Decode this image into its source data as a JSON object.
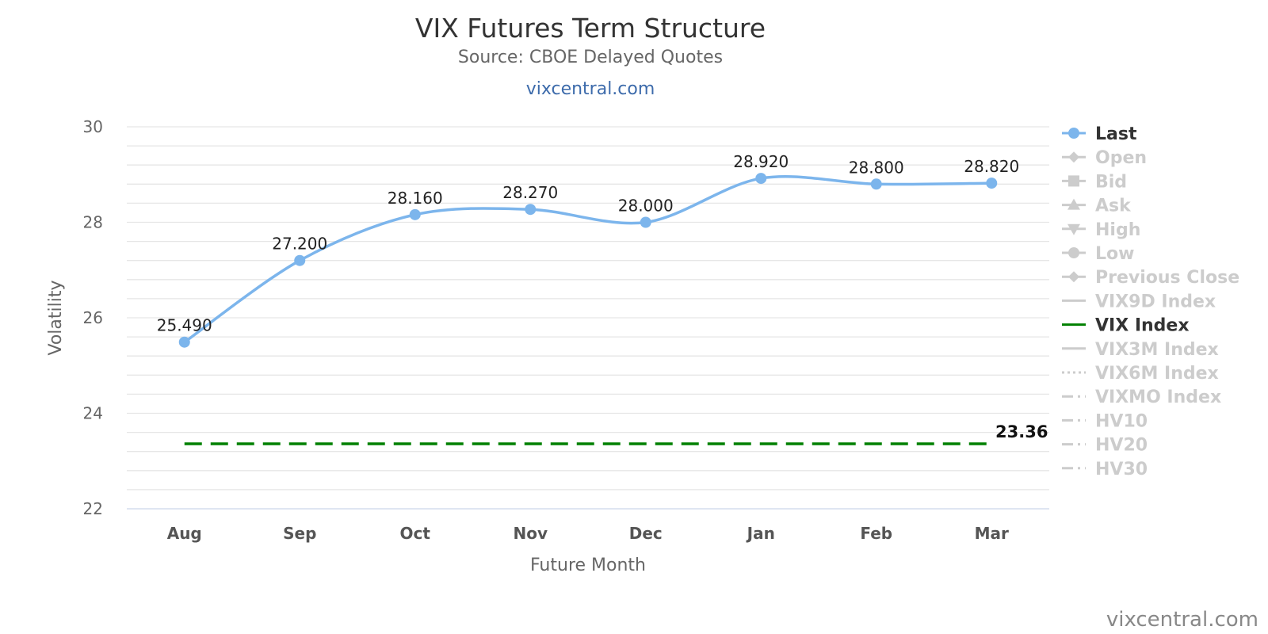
{
  "header": {
    "title": "VIX Futures Term Structure",
    "subtitle": "Source: CBOE Delayed Quotes",
    "site_link": "vixcentral.com"
  },
  "watermark": "vixcentral.com",
  "chart_data": {
    "type": "line",
    "title": "VIX Futures Term Structure",
    "subtitle": "Source: CBOE Delayed Quotes",
    "xlabel": "Future Month",
    "ylabel": "Volatility",
    "categories": [
      "Aug",
      "Sep",
      "Oct",
      "Nov",
      "Dec",
      "Jan",
      "Feb",
      "Mar"
    ],
    "ylim": [
      22,
      30
    ],
    "yticks": [
      "22",
      "24",
      "26",
      "28",
      "30"
    ],
    "grid": true,
    "legend_position": "right",
    "series": [
      {
        "name": "Last",
        "values": [
          25.49,
          27.2,
          28.16,
          28.27,
          28.0,
          28.92,
          28.8,
          28.82
        ],
        "labels": [
          "25.490",
          "27.200",
          "28.160",
          "28.270",
          "28.000",
          "28.920",
          "28.800",
          "28.820"
        ],
        "color": "#7cb5ec",
        "smooth": true,
        "markers": true
      },
      {
        "name": "VIX Index",
        "values": [
          23.36,
          23.36,
          23.36,
          23.36,
          23.36,
          23.36,
          23.36,
          23.36
        ],
        "end_label": "23.36",
        "color": "#008000",
        "dashed": true
      }
    ],
    "legend": [
      {
        "name": "Last",
        "active": true,
        "symbol": "circle",
        "color": "#7cb5ec"
      },
      {
        "name": "Open",
        "active": false,
        "symbol": "diamond"
      },
      {
        "name": "Bid",
        "active": false,
        "symbol": "square"
      },
      {
        "name": "Ask",
        "active": false,
        "symbol": "triangle"
      },
      {
        "name": "High",
        "active": false,
        "symbol": "triangle-down"
      },
      {
        "name": "Low",
        "active": false,
        "symbol": "circle"
      },
      {
        "name": "Previous Close",
        "active": false,
        "symbol": "diamond"
      },
      {
        "name": "VIX9D Index",
        "active": false,
        "symbol": "line"
      },
      {
        "name": "VIX Index",
        "active": true,
        "symbol": "line",
        "color": "#008000"
      },
      {
        "name": "VIX3M Index",
        "active": false,
        "symbol": "line"
      },
      {
        "name": "VIX6M Index",
        "active": false,
        "symbol": "dot"
      },
      {
        "name": "VIXMO Index",
        "active": false,
        "symbol": "dashdot"
      },
      {
        "name": "HV10",
        "active": false,
        "symbol": "dashdot"
      },
      {
        "name": "HV20",
        "active": false,
        "symbol": "dashdot"
      },
      {
        "name": "HV30",
        "active": false,
        "symbol": "dashdot"
      }
    ],
    "colors": {
      "inactive_legend": "#cccccc",
      "active_legend_text": "#333333",
      "grid": "#e6e6e6"
    }
  }
}
